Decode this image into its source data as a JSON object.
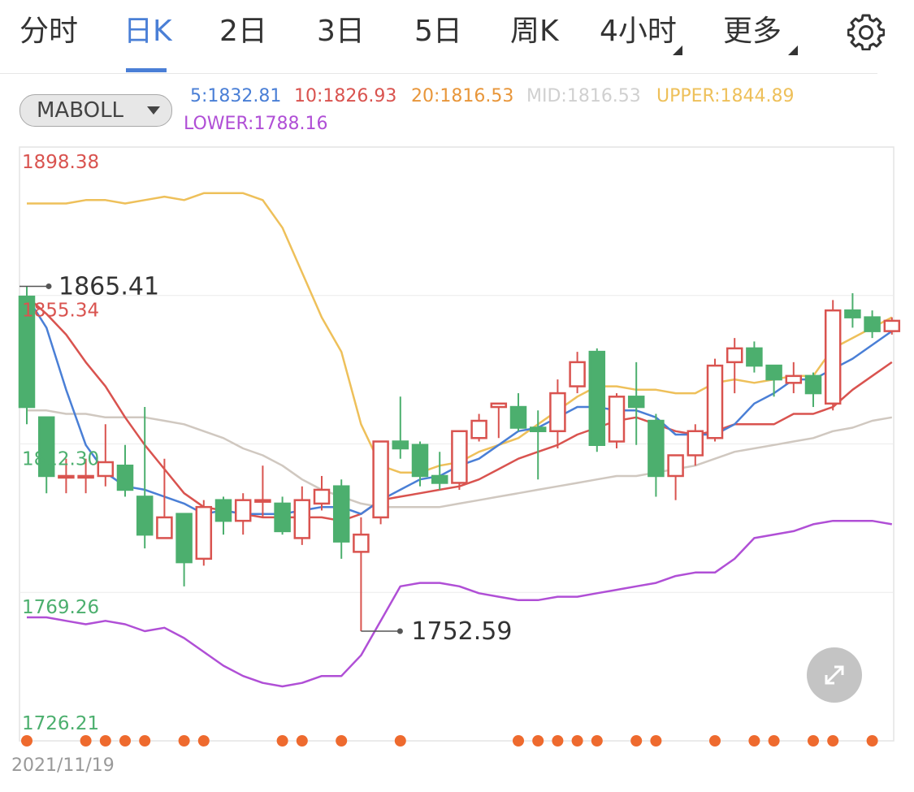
{
  "tabs": [
    {
      "label": "分时",
      "active": false
    },
    {
      "label": "日K",
      "active": true
    },
    {
      "label": "2日",
      "active": false
    },
    {
      "label": "3日",
      "active": false
    },
    {
      "label": "5日",
      "active": false
    },
    {
      "label": "周K",
      "active": false
    },
    {
      "label": "4小时",
      "active": false
    },
    {
      "label": "更多",
      "active": false
    }
  ],
  "indicator_select": {
    "label": "MABOLL"
  },
  "legend": {
    "ma5": "5:1832.81",
    "ma10": "10:1826.93",
    "ma20": "20:1816.53",
    "mid": "MID:1816.53",
    "upper": "UPPER:1844.89",
    "lower": "LOWER:1788.16"
  },
  "axis_labels": [
    "1898.38",
    "1855.34",
    "1812.30",
    "1769.26",
    "1726.21"
  ],
  "annotations": {
    "high": "1865.41",
    "low": "1752.59"
  },
  "date_label": "2021/11/19",
  "colors": {
    "up": "#d9534f",
    "down": "#4caf6e",
    "accent": "#4a7fd6",
    "ma5": "#4a7fd6",
    "ma10": "#d9534f",
    "ma20": "#d0c8c0",
    "upper": "#eec05a",
    "lower": "#b04fd6",
    "dots": "#ee6a2e"
  },
  "chart_data": {
    "type": "candlestick",
    "ylim": [
      1726.21,
      1898.38
    ],
    "y_ticks": [
      1898.38,
      1855.34,
      1812.3,
      1769.26,
      1726.21
    ],
    "candles": [
      [
        1855.0,
        1823.0,
        1858.0,
        1818.0
      ],
      [
        1820.0,
        1803.0,
        1820.0,
        1798.0
      ],
      [
        1803.0,
        1803.0,
        1808.0,
        1798.0
      ],
      [
        1803.0,
        1803.0,
        1808.0,
        1798.0
      ],
      [
        1803.0,
        1807.0,
        1818.0,
        1800.0
      ],
      [
        1806.0,
        1799.0,
        1812.0,
        1797.0
      ],
      [
        1797.0,
        1786.0,
        1823.0,
        1782.0
      ],
      [
        1785.0,
        1791.0,
        1808.0,
        1786.0
      ],
      [
        1792.0,
        1778.0,
        1792.0,
        1771.0
      ],
      [
        1779.0,
        1794.0,
        1796.0,
        1777.0
      ],
      [
        1796.0,
        1790.0,
        1797.0,
        1786.0
      ],
      [
        1790.0,
        1796.0,
        1798.0,
        1786.0
      ],
      [
        1796.0,
        1796.0,
        1806.0,
        1791.0
      ],
      [
        1795.0,
        1787.0,
        1797.0,
        1786.0
      ],
      [
        1785.0,
        1796.0,
        1800.0,
        1783.0
      ],
      [
        1795.0,
        1799.0,
        1803.0,
        1793.0
      ],
      [
        1800.0,
        1784.0,
        1802.0,
        1779.0
      ],
      [
        1781.0,
        1786.0,
        1791.0,
        1758.0
      ],
      [
        1791.0,
        1813.0,
        1813.0,
        1789.0
      ],
      [
        1813.0,
        1811.0,
        1826.0,
        1808.0
      ],
      [
        1812.0,
        1803.0,
        1813.0,
        1800.0
      ],
      [
        1803.0,
        1801.0,
        1810.0,
        1799.0
      ],
      [
        1801.0,
        1816.0,
        1816.0,
        1799.0
      ],
      [
        1814.0,
        1819.0,
        1821.0,
        1813.0
      ],
      [
        1823.0,
        1824.0,
        1824.0,
        1814.0
      ],
      [
        1823.0,
        1817.0,
        1827.0,
        1816.0
      ],
      [
        1817.0,
        1816.0,
        1822.0,
        1802.0
      ],
      [
        1816.0,
        1827.0,
        1831.0,
        1811.0
      ],
      [
        1829.0,
        1836.0,
        1839.0,
        1827.0
      ],
      [
        1839.0,
        1812.0,
        1840.0,
        1810.0
      ],
      [
        1813.0,
        1826.0,
        1827.0,
        1811.0
      ],
      [
        1826.0,
        1823.0,
        1836.0,
        1812.0
      ],
      [
        1819.0,
        1803.0,
        1821.0,
        1797.0
      ],
      [
        1803.0,
        1809.0,
        1809.0,
        1796.0
      ],
      [
        1809.0,
        1816.0,
        1818.0,
        1806.0
      ],
      [
        1814.0,
        1835.0,
        1837.0,
        1813.0
      ],
      [
        1836.0,
        1840.0,
        1843.0,
        1827.0
      ],
      [
        1840.0,
        1835.0,
        1842.0,
        1833.0
      ],
      [
        1835.0,
        1831.0,
        1835.0,
        1826.0
      ],
      [
        1830.0,
        1832.0,
        1836.0,
        1827.0
      ],
      [
        1832.0,
        1827.0,
        1833.0,
        1823.0
      ],
      [
        1824.0,
        1851.0,
        1854.0,
        1822.0
      ],
      [
        1851.0,
        1849.0,
        1856.0,
        1846.0
      ],
      [
        1849.0,
        1845.0,
        1851.0,
        1843.0
      ],
      [
        1845.0,
        1848.0,
        1849.0,
        1844.0
      ]
    ],
    "ma5": [
      1855.0,
      1846.0,
      1828.0,
      1812.0,
      1804.0,
      1800.0,
      1799.0,
      1797.0,
      1795.0,
      1792.0,
      1793.0,
      1792.0,
      1792.0,
      1792.0,
      1793.0,
      1794.0,
      1794.0,
      1792.0,
      1796.0,
      1799.0,
      1802.0,
      1803.0,
      1806.0,
      1808.0,
      1812.0,
      1816.0,
      1817.0,
      1820.0,
      1823.0,
      1823.0,
      1822.0,
      1822.0,
      1820.0,
      1815.0,
      1815.0,
      1815.0,
      1818.0,
      1824.0,
      1827.0,
      1831.0,
      1831.0,
      1834.0,
      1837.0,
      1841.0,
      1845.0
    ],
    "ma10": [
      1855.0,
      1850.0,
      1844.0,
      1836.0,
      1829.0,
      1820.0,
      1812.0,
      1805.0,
      1798.0,
      1794.0,
      1793.0,
      1792.0,
      1791.0,
      1791.0,
      1791.0,
      1791.0,
      1790.0,
      1792.0,
      1796.0,
      1797.0,
      1798.0,
      1799.0,
      1800.0,
      1802.0,
      1805.0,
      1808.0,
      1810.0,
      1812.0,
      1815.0,
      1817.0,
      1819.0,
      1820.0,
      1818.0,
      1816.0,
      1815.0,
      1816.0,
      1818.0,
      1818.0,
      1818.0,
      1821.0,
      1821.0,
      1823.0,
      1828.0,
      1832.0,
      1836.0
    ],
    "ma20": [
      1822.0,
      1822.0,
      1821.0,
      1821.0,
      1820.0,
      1820.0,
      1820.0,
      1819.0,
      1818.0,
      1816.0,
      1814.0,
      1811.0,
      1809.0,
      1806.0,
      1802.0,
      1799.0,
      1797.0,
      1795.0,
      1794.0,
      1794.0,
      1794.0,
      1794.0,
      1795.0,
      1796.0,
      1797.0,
      1798.0,
      1799.0,
      1800.0,
      1801.0,
      1802.0,
      1803.0,
      1803.0,
      1804.0,
      1805.0,
      1806.0,
      1808.0,
      1810.0,
      1811.0,
      1812.0,
      1813.0,
      1814.0,
      1816.0,
      1817.0,
      1819.0,
      1820.0
    ],
    "upper": [
      1882.0,
      1882.0,
      1882.0,
      1883.0,
      1883.0,
      1882.0,
      1883.0,
      1884.0,
      1883.0,
      1885.0,
      1885.0,
      1885.0,
      1883.0,
      1875.0,
      1862.0,
      1849.0,
      1839.0,
      1818.0,
      1806.0,
      1804.0,
      1804.0,
      1806.0,
      1807.0,
      1810.0,
      1812.0,
      1814.0,
      1818.0,
      1822.0,
      1826.0,
      1829.0,
      1829.0,
      1828.0,
      1828.0,
      1827.0,
      1827.0,
      1830.0,
      1831.0,
      1830.0,
      1831.0,
      1832.0,
      1832.0,
      1840.0,
      1843.0,
      1846.0,
      1849.0
    ],
    "lower": [
      1762.0,
      1762.0,
      1761.0,
      1760.0,
      1761.0,
      1760.0,
      1758.0,
      1759.0,
      1756.0,
      1752.0,
      1748.0,
      1745.0,
      1743.0,
      1742.0,
      1743.0,
      1745.0,
      1745.0,
      1751.0,
      1761.0,
      1771.0,
      1772.0,
      1772.0,
      1771.0,
      1769.0,
      1768.0,
      1767.0,
      1767.0,
      1768.0,
      1768.0,
      1769.0,
      1770.0,
      1771.0,
      1772.0,
      1774.0,
      1775.0,
      1775.0,
      1779.0,
      1785.0,
      1786.0,
      1787.0,
      1789.0,
      1790.0,
      1790.0,
      1790.0,
      1789.0
    ],
    "event_markers": [
      0,
      3,
      4,
      5,
      6,
      8,
      9,
      13,
      14,
      16,
      19,
      25,
      26,
      27,
      28,
      29,
      31,
      32,
      35,
      37,
      38,
      40,
      41,
      43
    ]
  }
}
